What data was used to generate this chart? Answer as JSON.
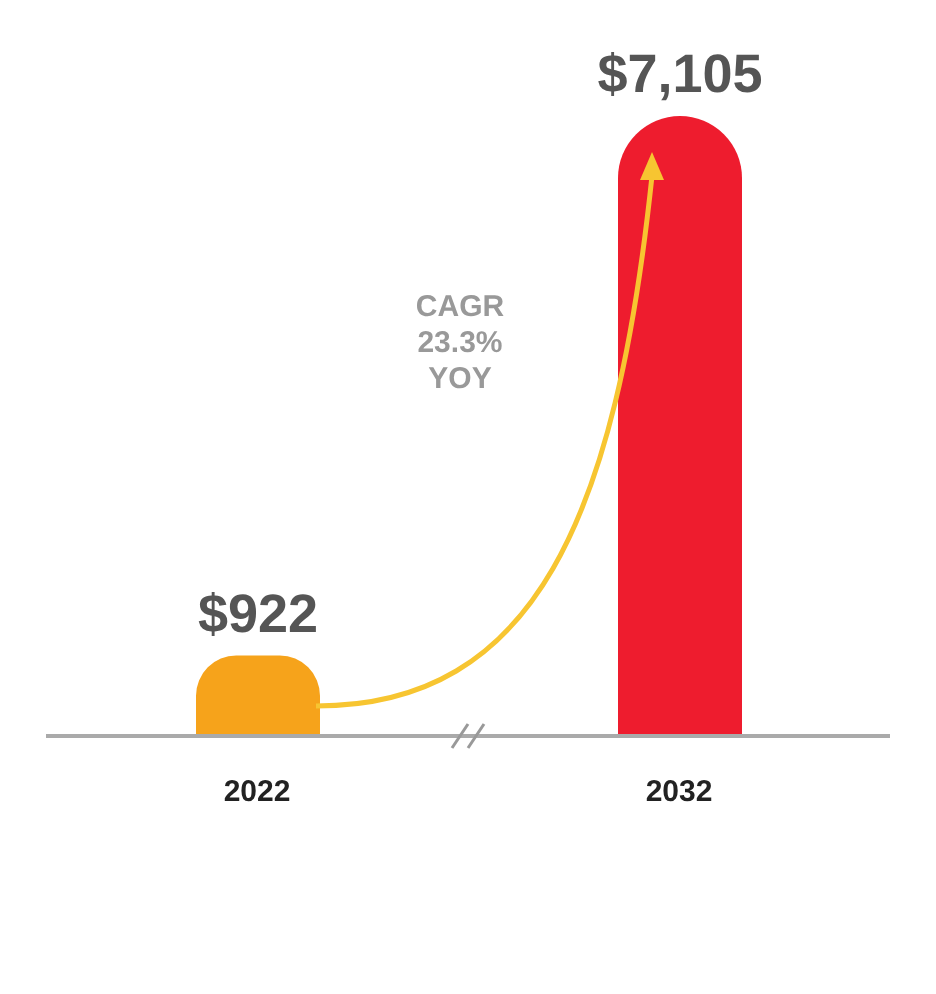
{
  "chart_data": {
    "type": "bar",
    "categories": [
      "2022",
      "2032"
    ],
    "values": [
      922,
      7105
    ],
    "colors": [
      "#f6a31b",
      "#ee1c2e"
    ],
    "value_labels": [
      "$922",
      "$7,105"
    ],
    "annotations": [
      "CAGR\n23.3%\nYOY"
    ],
    "grid": false,
    "legend": false
  }
}
